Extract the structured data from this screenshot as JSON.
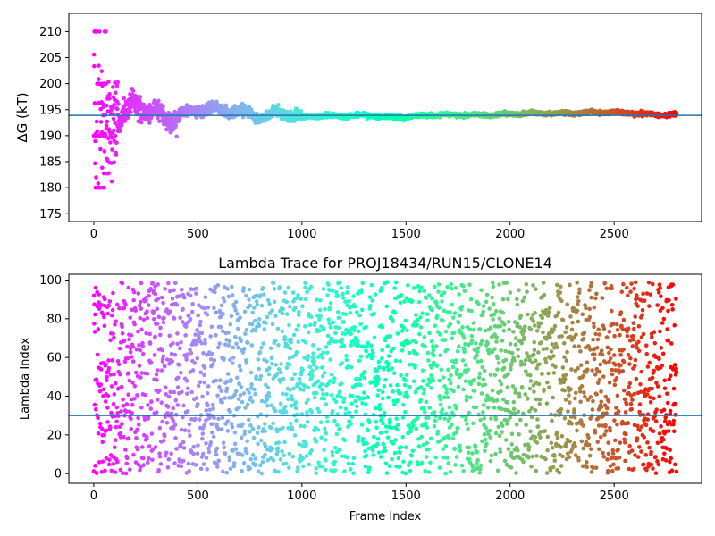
{
  "chart_data": [
    {
      "type": "scatter",
      "title": "",
      "xlabel": "",
      "ylabel": "ΔG (kT)",
      "xlim": [
        -120,
        2920
      ],
      "ylim": [
        173.5,
        213.5
      ],
      "x_ticks": [
        0,
        500,
        1000,
        1500,
        2000,
        2500
      ],
      "y_ticks": [
        175,
        180,
        185,
        190,
        195,
        200,
        205,
        210
      ],
      "hline": 193.9,
      "hline_color": "#1f77b4",
      "colormap": "rainbow",
      "color_by": "x",
      "x_range": [
        0,
        2800
      ],
      "point_count": 2800,
      "trace_knots": [
        [
          0,
          195
        ],
        [
          50,
          193
        ],
        [
          100,
          191
        ],
        [
          150,
          194
        ],
        [
          200,
          196.5
        ],
        [
          250,
          195
        ],
        [
          300,
          194.5
        ],
        [
          350,
          193
        ],
        [
          400,
          194
        ],
        [
          450,
          194.5
        ],
        [
          500,
          195
        ],
        [
          550,
          195.5
        ],
        [
          600,
          195
        ],
        [
          650,
          195
        ],
        [
          700,
          195
        ],
        [
          750,
          194
        ],
        [
          800,
          193.5
        ],
        [
          850,
          194
        ],
        [
          900,
          194.5
        ],
        [
          950,
          194
        ],
        [
          1000,
          193.5
        ],
        [
          1100,
          193.8
        ],
        [
          1200,
          193.8
        ],
        [
          1300,
          194
        ],
        [
          1400,
          193.5
        ],
        [
          1500,
          193.5
        ],
        [
          1600,
          194
        ],
        [
          1700,
          194
        ],
        [
          1800,
          194
        ],
        [
          1900,
          194
        ],
        [
          2000,
          194.2
        ],
        [
          2100,
          194.3
        ],
        [
          2200,
          194.3
        ],
        [
          2300,
          194.3
        ],
        [
          2400,
          194.5
        ],
        [
          2500,
          194.5
        ],
        [
          2600,
          194.3
        ],
        [
          2700,
          194
        ],
        [
          2800,
          194
        ]
      ]
    },
    {
      "type": "scatter",
      "title": "Lambda Trace for PROJ18434/RUN15/CLONE14",
      "xlabel": "Frame Index",
      "ylabel": "Lambda Index",
      "xlim": [
        -120,
        2920
      ],
      "ylim": [
        -5,
        103
      ],
      "x_ticks": [
        0,
        500,
        1000,
        1500,
        2000,
        2500
      ],
      "y_ticks": [
        0,
        20,
        40,
        60,
        80,
        100
      ],
      "hline": 30,
      "hline_color": "#1f77b4",
      "colormap": "rainbow",
      "color_by": "x",
      "x_range": [
        0,
        2800
      ],
      "point_count": 2800,
      "y_range": [
        0,
        99
      ]
    }
  ]
}
